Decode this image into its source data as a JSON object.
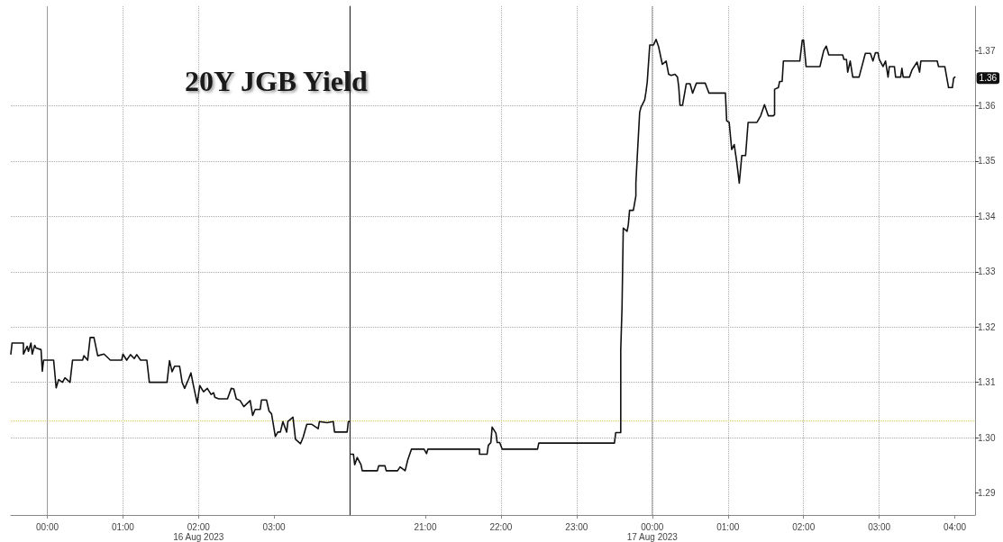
{
  "chart_data": [
    {
      "type": "line",
      "title": "20Y JGB Yield",
      "x": [
        "2023-08-15T23:31",
        "2023-08-15T23:32",
        "2023-08-15T23:41",
        "2023-08-15T23:41",
        "2023-08-15T23:44",
        "2023-08-15T23:45",
        "2023-08-15T23:47",
        "2023-08-15T23:48",
        "2023-08-15T23:50",
        "2023-08-15T23:51",
        "2023-08-15T23:55",
        "2023-08-15T23:56",
        "2023-08-15T23:57",
        "2023-08-16T00:05",
        "2023-08-16T00:07",
        "2023-08-16T00:09",
        "2023-08-16T00:12",
        "2023-08-16T00:14",
        "2023-08-16T00:18",
        "2023-08-16T00:20",
        "2023-08-16T00:28",
        "2023-08-16T00:29",
        "2023-08-16T00:32",
        "2023-08-16T00:34",
        "2023-08-16T00:37",
        "2023-08-16T00:40",
        "2023-08-16T00:45",
        "2023-08-16T00:50",
        "2023-08-16T00:59",
        "2023-08-16T01:00",
        "2023-08-16T01:03",
        "2023-08-16T01:06",
        "2023-08-16T01:09",
        "2023-08-16T01:11",
        "2023-08-16T01:14",
        "2023-08-16T01:19",
        "2023-08-16T01:21",
        "2023-08-16T01:35",
        "2023-08-16T01:37",
        "2023-08-16T01:39",
        "2023-08-16T01:41",
        "2023-08-16T01:45",
        "2023-08-16T01:47",
        "2023-08-16T01:49",
        "2023-08-16T01:52",
        "2023-08-16T01:54",
        "2023-08-16T01:56",
        "2023-08-16T01:59",
        "2023-08-16T02:01",
        "2023-08-16T02:04",
        "2023-08-16T02:07",
        "2023-08-16T02:10",
        "2023-08-16T02:12",
        "2023-08-16T02:13",
        "2023-08-16T02:16",
        "2023-08-16T02:23",
        "2023-08-16T02:26",
        "2023-08-16T02:28",
        "2023-08-16T02:30",
        "2023-08-16T02:33",
        "2023-08-16T02:36",
        "2023-08-16T02:41",
        "2023-08-16T02:43",
        "2023-08-16T02:45",
        "2023-08-16T02:49",
        "2023-08-16T02:50",
        "2023-08-16T02:54",
        "2023-08-16T02:56",
        "2023-08-16T02:58",
        "2023-08-16T03:01",
        "2023-08-16T03:03",
        "2023-08-16T03:05",
        "2023-08-16T03:07",
        "2023-08-16T03:10",
        "2023-08-16T03:11",
        "2023-08-16T03:15",
        "2023-08-16T03:17",
        "2023-08-16T03:21",
        "2023-08-16T03:23",
        "2023-08-16T03:26",
        "2023-08-16T03:30",
        "2023-08-16T03:35",
        "2023-08-16T03:36",
        "2023-08-16T03:42",
        "2023-08-16T03:47",
        "2023-08-16T03:48",
        "2023-08-16T03:58",
        "2023-08-16T03:59",
        "2023-08-16T04:00"
      ],
      "series": [
        {
          "color": "#111111",
          "values": [
            1.3151,
            1.3171,
            1.3171,
            1.3151,
            1.3165,
            1.3156,
            1.3171,
            1.3151,
            1.3167,
            1.3162,
            1.3159,
            1.312,
            1.314,
            1.314,
            1.309,
            1.3105,
            1.31,
            1.3108,
            1.31,
            1.314,
            1.314,
            1.3148,
            1.314,
            1.3181,
            1.3181,
            1.3148,
            1.3151,
            1.314,
            1.314,
            1.3151,
            1.314,
            1.315,
            1.3143,
            1.315,
            1.314,
            1.314,
            1.31,
            1.31,
            1.3139,
            1.3119,
            1.3129,
            1.3129,
            1.31,
            1.3089,
            1.3105,
            1.3117,
            1.3094,
            1.3062,
            1.3094,
            1.3083,
            1.3089,
            1.3078,
            1.3081,
            1.3073,
            1.307,
            1.307,
            1.3089,
            1.3088,
            1.307,
            1.3067,
            1.3056,
            1.3067,
            1.304,
            1.3051,
            1.3051,
            1.3068,
            1.3068,
            1.3048,
            1.3043,
            1.3002,
            1.301,
            1.301,
            1.3029,
            1.301,
            1.3029,
            1.3037,
            1.2997,
            1.2989,
            1.3,
            1.3024,
            1.3024,
            1.3016,
            1.3029,
            1.3027,
            1.3029,
            1.301,
            1.301,
            1.3029,
            1.3029
          ]
        }
      ],
      "xlim": [
        "2023-08-15T23:31",
        "2023-08-16T04:00"
      ],
      "xticks": [
        {
          "value": "2023-08-16T00:00",
          "label": "00:00"
        },
        {
          "value": "2023-08-16T01:00",
          "label": "01:00"
        },
        {
          "value": "2023-08-16T02:00",
          "label": "02:00\n16 Aug 2023"
        },
        {
          "value": "2023-08-16T03:00",
          "label": "03:00"
        }
      ],
      "ylim": [
        1.286,
        1.378
      ],
      "yticks": [
        1.29,
        1.3,
        1.31,
        1.32,
        1.33,
        1.34,
        1.35,
        1.36,
        1.37
      ],
      "tick_labels": "x",
      "ref_lines": [
        {
          "axis": "y",
          "value": 1.303,
          "color": "#d9c84a",
          "line_style": "dotted"
        },
        {
          "axis": "x",
          "value": "2023-08-16T00:00",
          "color": "#999999",
          "line_style": "solid"
        }
      ],
      "grid": true,
      "marker": "none",
      "line_style": "solid"
    },
    {
      "type": "line",
      "x": [
        "2023-08-16T20:00",
        "2023-08-16T20:03",
        "2023-08-16T20:04",
        "2023-08-16T20:06",
        "2023-08-16T20:09",
        "2023-08-16T20:10",
        "2023-08-16T20:22",
        "2023-08-16T20:23",
        "2023-08-16T20:28",
        "2023-08-16T20:29",
        "2023-08-16T20:38",
        "2023-08-16T20:40",
        "2023-08-16T20:44",
        "2023-08-16T20:46",
        "2023-08-16T20:49",
        "2023-08-16T20:59",
        "2023-08-16T21:01",
        "2023-08-16T21:02",
        "2023-08-16T21:43",
        "2023-08-16T21:43",
        "2023-08-16T21:49",
        "2023-08-16T21:50",
        "2023-08-16T21:52",
        "2023-08-16T21:53",
        "2023-08-16T21:56",
        "2023-08-16T21:57",
        "2023-08-16T21:59",
        "2023-08-16T22:01",
        "2023-08-16T22:29",
        "2023-08-16T22:30",
        "2023-08-16T23:30",
        "2023-08-16T23:31",
        "2023-08-16T23:35",
        "2023-08-16T23:35",
        "2023-08-16T23:36",
        "2023-08-16T23:37",
        "2023-08-16T23:40",
        "2023-08-16T23:41",
        "2023-08-16T23:42",
        "2023-08-16T23:45",
        "2023-08-16T23:47",
        "2023-08-16T23:47",
        "2023-08-16T23:48",
        "2023-08-16T23:50",
        "2023-08-16T23:51",
        "2023-08-16T23:54",
        "2023-08-16T23:55",
        "2023-08-16T23:56",
        "2023-08-16T23:58",
        "2023-08-17T00:01",
        "2023-08-17T00:02",
        "2023-08-17T00:03",
        "2023-08-17T00:05",
        "2023-08-17T00:08",
        "2023-08-17T00:11",
        "2023-08-17T00:13",
        "2023-08-17T00:15",
        "2023-08-17T00:18",
        "2023-08-17T00:20",
        "2023-08-17T00:21",
        "2023-08-17T00:22",
        "2023-08-17T00:24",
        "2023-08-17T00:27",
        "2023-08-17T00:30",
        "2023-08-17T00:32",
        "2023-08-17T00:35",
        "2023-08-17T00:42",
        "2023-08-17T00:45",
        "2023-08-17T00:58",
        "2023-08-17T00:59",
        "2023-08-17T01:01",
        "2023-08-17T01:03",
        "2023-08-17T01:05",
        "2023-08-17T01:07",
        "2023-08-17T01:09",
        "2023-08-17T01:11",
        "2023-08-17T01:14",
        "2023-08-17T01:16",
        "2023-08-17T01:23",
        "2023-08-17T01:26",
        "2023-08-17T01:29",
        "2023-08-17T01:32",
        "2023-08-17T01:36",
        "2023-08-17T01:37",
        "2023-08-17T01:37",
        "2023-08-17T01:40",
        "2023-08-17T01:41",
        "2023-08-17T01:43",
        "2023-08-17T01:44",
        "2023-08-17T01:57",
        "2023-08-17T01:59",
        "2023-08-17T02:00",
        "2023-08-17T02:02",
        "2023-08-17T02:13",
        "2023-08-17T02:14",
        "2023-08-17T02:16",
        "2023-08-17T02:18",
        "2023-08-17T02:20",
        "2023-08-17T02:31",
        "2023-08-17T02:32",
        "2023-08-17T02:34",
        "2023-08-17T02:35",
        "2023-08-17T02:37",
        "2023-08-17T02:39",
        "2023-08-17T02:44",
        "2023-08-17T02:49",
        "2023-08-17T02:53",
        "2023-08-17T02:55",
        "2023-08-17T02:57",
        "2023-08-17T02:59",
        "2023-08-17T03:00",
        "2023-08-17T03:03",
        "2023-08-17T03:05",
        "2023-08-17T03:07",
        "2023-08-17T03:08",
        "2023-08-17T03:12",
        "2023-08-17T03:13",
        "2023-08-17T03:17",
        "2023-08-17T03:18",
        "2023-08-17T03:19",
        "2023-08-17T03:24",
        "2023-08-17T03:26",
        "2023-08-17T03:30",
        "2023-08-17T03:32",
        "2023-08-17T03:33",
        "2023-08-17T03:46",
        "2023-08-17T03:47",
        "2023-08-17T03:52",
        "2023-08-17T03:55",
        "2023-08-17T03:58",
        "2023-08-17T03:59",
        "2023-08-17T04:00"
      ],
      "series": [
        {
          "color": "#111111",
          "values": [
            1.297,
            1.297,
            1.2951,
            1.2964,
            1.2951,
            1.294,
            1.294,
            1.2949,
            1.2949,
            1.294,
            1.294,
            1.2947,
            1.294,
            1.2959,
            1.2979,
            1.2979,
            1.2971,
            1.2979,
            1.2979,
            1.297,
            1.297,
            1.2986,
            1.2991,
            1.3019,
            1.3008,
            1.2991,
            1.2991,
            1.2979,
            1.2979,
            1.299,
            1.299,
            1.3009,
            1.3009,
            1.3159,
            1.3234,
            1.3379,
            1.3373,
            1.3385,
            1.3411,
            1.3411,
            1.3437,
            1.346,
            1.3504,
            1.3588,
            1.3597,
            1.3611,
            1.3625,
            1.3643,
            1.371,
            1.371,
            1.3715,
            1.372,
            1.3707,
            1.3675,
            1.3681,
            1.3657,
            1.3655,
            1.3657,
            1.3652,
            1.3634,
            1.3601,
            1.3601,
            1.364,
            1.364,
            1.3623,
            1.3641,
            1.3641,
            1.3623,
            1.3623,
            1.3573,
            1.357,
            1.3521,
            1.353,
            1.3498,
            1.346,
            1.351,
            1.351,
            1.357,
            1.357,
            1.3582,
            1.3602,
            1.3582,
            1.3582,
            1.3584,
            1.363,
            1.3633,
            1.3644,
            1.3644,
            1.3681,
            1.3681,
            1.3719,
            1.3719,
            1.3671,
            1.3671,
            1.3681,
            1.37,
            1.3708,
            1.3692,
            1.3692,
            1.3684,
            1.3684,
            1.3661,
            1.3681,
            1.3652,
            1.3652,
            1.3695,
            1.3695,
            1.3681,
            1.3696,
            1.3696,
            1.3684,
            1.3671,
            1.3681,
            1.3652,
            1.3671,
            1.3671,
            1.3652,
            1.3652,
            1.3668,
            1.3652,
            1.3652,
            1.3665,
            1.3679,
            1.3661,
            1.3681,
            1.3681,
            1.3671,
            1.3671,
            1.3633,
            1.3633,
            1.365,
            1.3652
          ]
        }
      ],
      "xlim": [
        "2023-08-16T20:00",
        "2023-08-17T04:16"
      ],
      "xticks": [
        {
          "value": "2023-08-16T21:00",
          "label": "21:00"
        },
        {
          "value": "2023-08-16T22:00",
          "label": "22:00"
        },
        {
          "value": "2023-08-16T23:00",
          "label": "23:00"
        },
        {
          "value": "2023-08-17T00:00",
          "label": "00:00\n17 Aug 2023"
        },
        {
          "value": "2023-08-17T01:00",
          "label": "01:00"
        },
        {
          "value": "2023-08-17T02:00",
          "label": "02:00"
        },
        {
          "value": "2023-08-17T03:00",
          "label": "03:00"
        },
        {
          "value": "2023-08-17T04:00",
          "label": "04:00"
        }
      ],
      "ylim": [
        1.286,
        1.378
      ],
      "yticks": [
        1.29,
        {
          "value": 1.3,
          "label": "1.30"
        },
        1.31,
        1.32,
        1.33,
        1.34,
        1.35,
        1.36,
        1.37
      ],
      "ref_lines": [
        {
          "axis": "y",
          "value": 1.303,
          "color": "#d9c84a",
          "line_style": "dotted"
        },
        {
          "axis": "x",
          "value": "2023-08-17T00:00",
          "color": "#999999",
          "line_style": "solid"
        }
      ],
      "annotations": [
        {
          "text": "1.36",
          "x": "2023-08-17T04:00",
          "y": 1.365
        }
      ],
      "grid": true,
      "marker": "none",
      "line_style": "solid"
    }
  ]
}
